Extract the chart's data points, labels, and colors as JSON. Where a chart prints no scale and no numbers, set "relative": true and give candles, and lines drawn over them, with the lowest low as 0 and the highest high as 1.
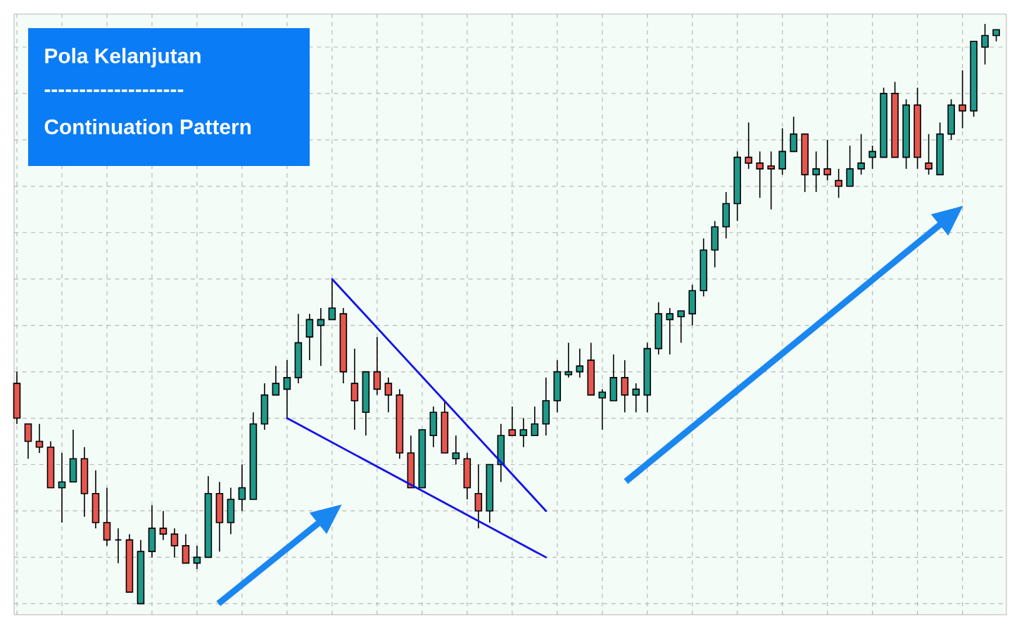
{
  "chart_data": {
    "type": "candlestick",
    "title": "Pola Kelanjutan",
    "subtitle": "Continuation Pattern",
    "annotations": [
      "--------------------"
    ],
    "relative": true,
    "tick_labels": false,
    "grid": true,
    "categories": [
      null,
      null,
      null,
      null,
      null,
      null,
      null,
      null,
      null,
      null,
      null,
      null,
      null,
      null,
      null,
      null,
      null,
      null,
      null,
      null,
      null,
      null,
      null,
      null,
      null,
      null,
      null,
      null,
      null,
      null,
      null,
      null,
      null,
      null,
      null,
      null,
      null,
      null,
      null,
      null,
      null,
      null,
      null,
      null,
      null,
      null,
      null,
      null,
      null,
      null,
      null,
      null,
      null,
      null,
      null,
      null,
      null,
      null,
      null,
      null,
      null,
      null,
      null,
      null,
      null,
      null,
      null,
      null,
      null,
      null,
      null,
      null,
      null,
      null,
      null,
      null,
      null,
      null,
      null,
      null,
      null,
      null,
      null,
      null,
      null,
      null,
      null,
      null
    ],
    "ohlc": [
      [
        0.38,
        0.4,
        0.31,
        0.32
      ],
      [
        0.31,
        0.31,
        0.25,
        0.28
      ],
      [
        0.28,
        0.31,
        0.26,
        0.27
      ],
      [
        0.27,
        0.28,
        0.2,
        0.2
      ],
      [
        0.2,
        0.26,
        0.14,
        0.21
      ],
      [
        0.21,
        0.3,
        0.21,
        0.25
      ],
      [
        0.25,
        0.27,
        0.15,
        0.19
      ],
      [
        0.19,
        0.23,
        0.13,
        0.14
      ],
      [
        0.14,
        0.2,
        0.1,
        0.11
      ],
      [
        0.11,
        0.13,
        0.07,
        0.11
      ],
      [
        0.11,
        0.12,
        0.02,
        0.02
      ],
      [
        0,
        0.11,
        0,
        0.09
      ],
      [
        0.09,
        0.17,
        0.08,
        0.13
      ],
      [
        0.13,
        0.16,
        0.11,
        0.12
      ],
      [
        0.12,
        0.13,
        0.08,
        0.1
      ],
      [
        0.1,
        0.12,
        0.07,
        0.07
      ],
      [
        0.07,
        0.1,
        0.06,
        0.08
      ],
      [
        0.08,
        0.22,
        0.08,
        0.19
      ],
      [
        0.19,
        0.21,
        0.09,
        0.14
      ],
      [
        0.14,
        0.2,
        0.12,
        0.18
      ],
      [
        0.18,
        0.24,
        0.16,
        0.2
      ],
      [
        0.18,
        0.33,
        0.18,
        0.31
      ],
      [
        0.31,
        0.38,
        0.3,
        0.36
      ],
      [
        0.36,
        0.41,
        0.36,
        0.38
      ],
      [
        0.37,
        0.42,
        0.32,
        0.39
      ],
      [
        0.39,
        0.5,
        0.38,
        0.45
      ],
      [
        0.46,
        0.5,
        0.42,
        0.49
      ],
      [
        0.48,
        0.51,
        0.41,
        0.49
      ],
      [
        0.49,
        0.56,
        0.49,
        0.51
      ],
      [
        0.5,
        0.51,
        0.38,
        0.4
      ],
      [
        0.38,
        0.44,
        0.3,
        0.35
      ],
      [
        0.33,
        0.4,
        0.29,
        0.4
      ],
      [
        0.4,
        0.46,
        0.36,
        0.37
      ],
      [
        0.38,
        0.39,
        0.33,
        0.36
      ],
      [
        0.36,
        0.37,
        0.25,
        0.26
      ],
      [
        0.26,
        0.29,
        0.2,
        0.2
      ],
      [
        0.2,
        0.3,
        0.2,
        0.3
      ],
      [
        0.29,
        0.34,
        0.27,
        0.33
      ],
      [
        0.33,
        0.35,
        0.26,
        0.26
      ],
      [
        0.25,
        0.29,
        0.24,
        0.26
      ],
      [
        0.25,
        0.26,
        0.18,
        0.2
      ],
      [
        0.19,
        0.24,
        0.13,
        0.16
      ],
      [
        0.16,
        0.24,
        0.14,
        0.24
      ],
      [
        0.24,
        0.31,
        0.21,
        0.29
      ],
      [
        0.3,
        0.34,
        0.29,
        0.29
      ],
      [
        0.29,
        0.32,
        0.27,
        0.3
      ],
      [
        0.29,
        0.34,
        0.29,
        0.31
      ],
      [
        0.31,
        0.39,
        0.29,
        0.35
      ],
      [
        0.35,
        0.42,
        0.33,
        0.4
      ],
      [
        0.395,
        0.45,
        0.39,
        0.4
      ],
      [
        0.4,
        0.44,
        0.39,
        0.41
      ],
      [
        0.42,
        0.45,
        0.36,
        0.36
      ],
      [
        0.355,
        0.37,
        0.3,
        0.365
      ],
      [
        0.35,
        0.43,
        0.35,
        0.39
      ],
      [
        0.39,
        0.42,
        0.33,
        0.36
      ],
      [
        0.36,
        0.38,
        0.33,
        0.37
      ],
      [
        0.36,
        0.45,
        0.33,
        0.44
      ],
      [
        0.44,
        0.52,
        0.43,
        0.5
      ],
      [
        0.49,
        0.51,
        0.43,
        0.5
      ],
      [
        0.495,
        0.505,
        0.45,
        0.505
      ],
      [
        0.5,
        0.55,
        0.48,
        0.54
      ],
      [
        0.54,
        0.63,
        0.53,
        0.61
      ],
      [
        0.61,
        0.66,
        0.58,
        0.65
      ],
      [
        0.65,
        0.71,
        0.63,
        0.69
      ],
      [
        0.69,
        0.78,
        0.66,
        0.77
      ],
      [
        0.77,
        0.83,
        0.75,
        0.76
      ],
      [
        0.76,
        0.78,
        0.7,
        0.75
      ],
      [
        0.755,
        0.78,
        0.68,
        0.75
      ],
      [
        0.75,
        0.82,
        0.74,
        0.78
      ],
      [
        0.78,
        0.84,
        0.78,
        0.81
      ],
      [
        0.81,
        0.81,
        0.71,
        0.74
      ],
      [
        0.74,
        0.78,
        0.71,
        0.75
      ],
      [
        0.75,
        0.8,
        0.73,
        0.74
      ],
      [
        0.73,
        0.75,
        0.7,
        0.72
      ],
      [
        0.72,
        0.79,
        0.72,
        0.75
      ],
      [
        0.75,
        0.81,
        0.74,
        0.76
      ],
      [
        0.77,
        0.79,
        0.75,
        0.78
      ],
      [
        0.77,
        0.89,
        0.77,
        0.88
      ],
      [
        0.88,
        0.9,
        0.77,
        0.77
      ],
      [
        0.77,
        0.87,
        0.75,
        0.86
      ],
      [
        0.86,
        0.89,
        0.75,
        0.77
      ],
      [
        0.76,
        0.81,
        0.74,
        0.75
      ],
      [
        0.74,
        0.83,
        0.74,
        0.81
      ],
      [
        0.81,
        0.87,
        0.8,
        0.86
      ],
      [
        0.86,
        0.92,
        0.82,
        0.85
      ],
      [
        0.85,
        0.97,
        0.84,
        0.97
      ],
      [
        0.96,
        1,
        0.93,
        0.98
      ],
      [
        0.98,
        0.99,
        0.97,
        0.99
      ]
    ],
    "colors": [
      "#e8574f",
      "#e8574f",
      "#e8574f",
      "#e8574f",
      "#1f9a8a",
      "#1f9a8a",
      "#e8574f",
      "#e8574f",
      "#e8574f",
      "#000000",
      "#e8574f",
      "#1f9a8a",
      "#1f9a8a",
      "#e8574f",
      "#e8574f",
      "#e8574f",
      "#1f9a8a",
      "#1f9a8a",
      "#e8574f",
      "#1f9a8a",
      "#1f9a8a",
      "#1f9a8a",
      "#1f9a8a",
      "#1f9a8a",
      "#1f9a8a",
      "#1f9a8a",
      "#1f9a8a",
      "#1f9a8a",
      "#1f9a8a",
      "#e8574f",
      "#e8574f",
      "#1f9a8a",
      "#e8574f",
      "#e8574f",
      "#e8574f",
      "#e8574f",
      "#1f9a8a",
      "#1f9a8a",
      "#e8574f",
      "#1f9a8a",
      "#e8574f",
      "#e8574f",
      "#1f9a8a",
      "#1f9a8a",
      "#e8574f",
      "#1f9a8a",
      "#1f9a8a",
      "#1f9a8a",
      "#1f9a8a",
      "#1f9a8a",
      "#1f9a8a",
      "#e8574f",
      "#1f9a8a",
      "#1f9a8a",
      "#e8574f",
      "#1f9a8a",
      "#1f9a8a",
      "#1f9a8a",
      "#1f9a8a",
      "#1f9a8a",
      "#1f9a8a",
      "#1f9a8a",
      "#1f9a8a",
      "#1f9a8a",
      "#1f9a8a",
      "#e8574f",
      "#e8574f",
      "#e8574f",
      "#1f9a8a",
      "#1f9a8a",
      "#e8574f",
      "#1f9a8a",
      "#e8574f",
      "#e8574f",
      "#1f9a8a",
      "#1f9a8a",
      "#1f9a8a",
      "#1f9a8a",
      "#e8574f",
      "#1f9a8a",
      "#e8574f",
      "#e8574f",
      "#1f9a8a",
      "#1f9a8a",
      "#e8574f",
      "#1f9a8a",
      "#1f9a8a",
      "#1f9a8a"
    ],
    "series": [
      {
        "type": "line",
        "color": "#1414e6",
        "values": [
          null,
          null,
          null,
          null,
          null,
          null,
          null,
          null,
          null,
          null,
          null,
          null,
          null,
          null,
          null,
          null,
          null,
          null,
          null,
          null,
          null,
          null,
          null,
          null,
          null,
          null,
          null,
          null,
          0.56,
          null,
          null,
          null,
          null,
          null,
          null,
          null,
          null,
          null,
          null,
          null,
          null,
          null,
          null,
          null,
          null,
          null,
          null,
          0.16,
          null,
          null,
          null,
          null,
          null,
          null,
          null,
          null,
          null,
          null,
          null,
          null,
          null,
          null,
          null,
          null,
          null,
          null,
          null,
          null,
          null,
          null,
          null,
          null,
          null,
          null,
          null,
          null,
          null,
          null,
          null,
          null,
          null,
          null,
          null,
          null,
          null,
          null,
          null,
          null
        ]
      },
      {
        "type": "line",
        "color": "#1414e6",
        "values": [
          null,
          null,
          null,
          null,
          null,
          null,
          null,
          null,
          null,
          null,
          null,
          null,
          null,
          null,
          null,
          null,
          null,
          null,
          null,
          null,
          null,
          null,
          null,
          null,
          0.32,
          null,
          null,
          null,
          null,
          null,
          null,
          null,
          null,
          null,
          null,
          null,
          null,
          null,
          null,
          null,
          null,
          null,
          null,
          null,
          null,
          null,
          null,
          0.08,
          null,
          null,
          null,
          null,
          null,
          null,
          null,
          null,
          null,
          null,
          null,
          null,
          null,
          null,
          null,
          null,
          null,
          null,
          null,
          null,
          null,
          null,
          null,
          null,
          null,
          null,
          null,
          null,
          null,
          null,
          null,
          null,
          null,
          null,
          null,
          null,
          null,
          null,
          null,
          null
        ]
      }
    ]
  }
}
